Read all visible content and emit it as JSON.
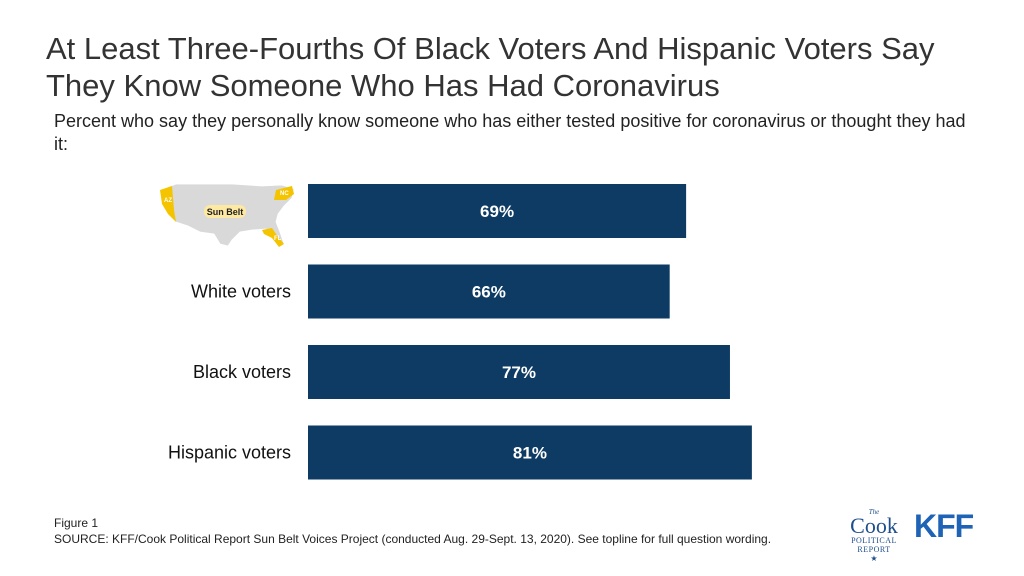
{
  "title": "At Least Three-Fourths Of Black Voters And Hispanic Voters Say They Know Someone Who Has Had Coronavirus",
  "subtitle": "Percent who say they personally know someone who has either tested positive for coronavirus or thought they had it:",
  "chart_data": {
    "type": "bar",
    "orientation": "horizontal",
    "categories": [
      "Sun Belt",
      "White voters",
      "Black voters",
      "Hispanic voters"
    ],
    "values": [
      69,
      66,
      77,
      81
    ],
    "value_labels": [
      "69%",
      "66%",
      "77%",
      "81%"
    ],
    "xlim": [
      0,
      100
    ],
    "grid": false,
    "legend": "none",
    "bar_color": "#0d3b63"
  },
  "map_badge": {
    "label": "Sun Belt",
    "states": [
      "AZ",
      "NC",
      "FL"
    ],
    "highlight_color": "#f5c400",
    "base_color": "#d9d9d9"
  },
  "footer": {
    "figure_label": "Figure 1",
    "source": "SOURCE: KFF/Cook Political Report Sun Belt Voices Project (conducted Aug. 29-Sept. 13, 2020). See topline for full question wording."
  },
  "logos": {
    "cook_the": "The",
    "cook_name": "Cook",
    "cook_political": "POLITICAL",
    "cook_report": "REPORT",
    "kff": "KFF"
  }
}
